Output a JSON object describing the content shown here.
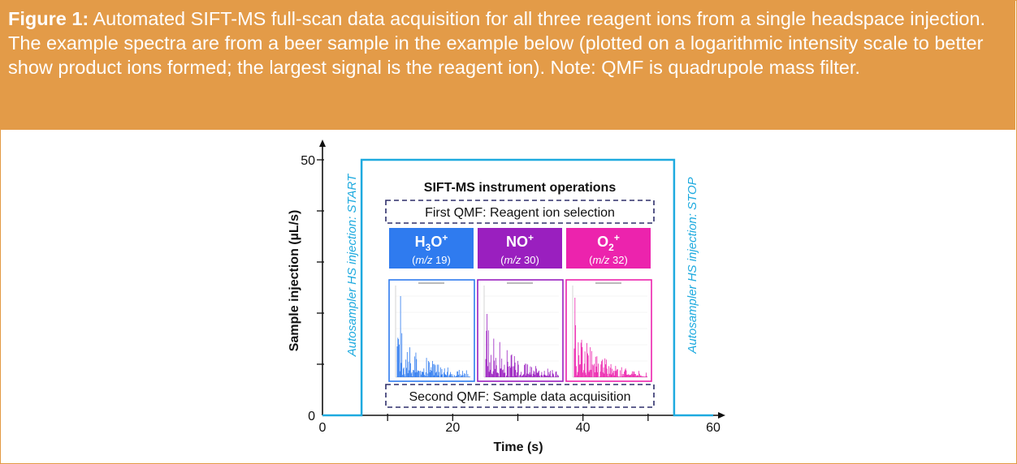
{
  "caption": {
    "label": "Figure 1:",
    "text": " Automated SIFT-MS full-scan data acquisition for all three reagent ions from a single headspace injection. The example spectra are from a beer sample in the example below (plotted on a logarithmic intensity scale to better show product ions formed; the largest signal is the reagent ion). Note: QMF is quadrupole mass filter."
  },
  "chart_data": {
    "type": "diagram",
    "xlabel": "Time (s)",
    "ylabel": "Sample injection (µL/s)",
    "xlim": [
      0,
      60
    ],
    "ylim": [
      0,
      50
    ],
    "x_ticks": [
      0,
      20,
      40,
      60
    ],
    "y_ticks": [
      0,
      50
    ],
    "injection_start_time": 6,
    "injection_stop_time": 54,
    "injection_rate": 50
  },
  "diagram": {
    "start_label": "Autosampler HS injection: START",
    "stop_label": "Autosampler HS injection: STOP",
    "title": "SIFT-MS instrument operations",
    "first_qmf": "First QMF: Reagent ion selection",
    "second_qmf": "Second QMF: Sample data acquisition",
    "ions": [
      {
        "name": "H3O+",
        "main": "H",
        "sub": "3",
        "rest": "O",
        "sup": "+",
        "mz_prefix": "(",
        "mz_italic": "m/z",
        "mz_value": " 19)",
        "color": "#2f7bef"
      },
      {
        "name": "NO+",
        "main": "NO",
        "sub": "",
        "rest": "",
        "sup": "+",
        "mz_prefix": "(",
        "mz_italic": "m/z",
        "mz_value": " 30)",
        "color": "#9a1fbf"
      },
      {
        "name": "O2+",
        "main": "O",
        "sub": "2",
        "rest": "",
        "sup": "+",
        "mz_prefix": "(",
        "mz_italic": "m/z",
        "mz_value": " 32)",
        "color": "#ec23ad"
      }
    ],
    "colors": {
      "accent": "#1eaadf",
      "navy": "#2e2f6a",
      "caption_bg": "#e39b48"
    }
  }
}
